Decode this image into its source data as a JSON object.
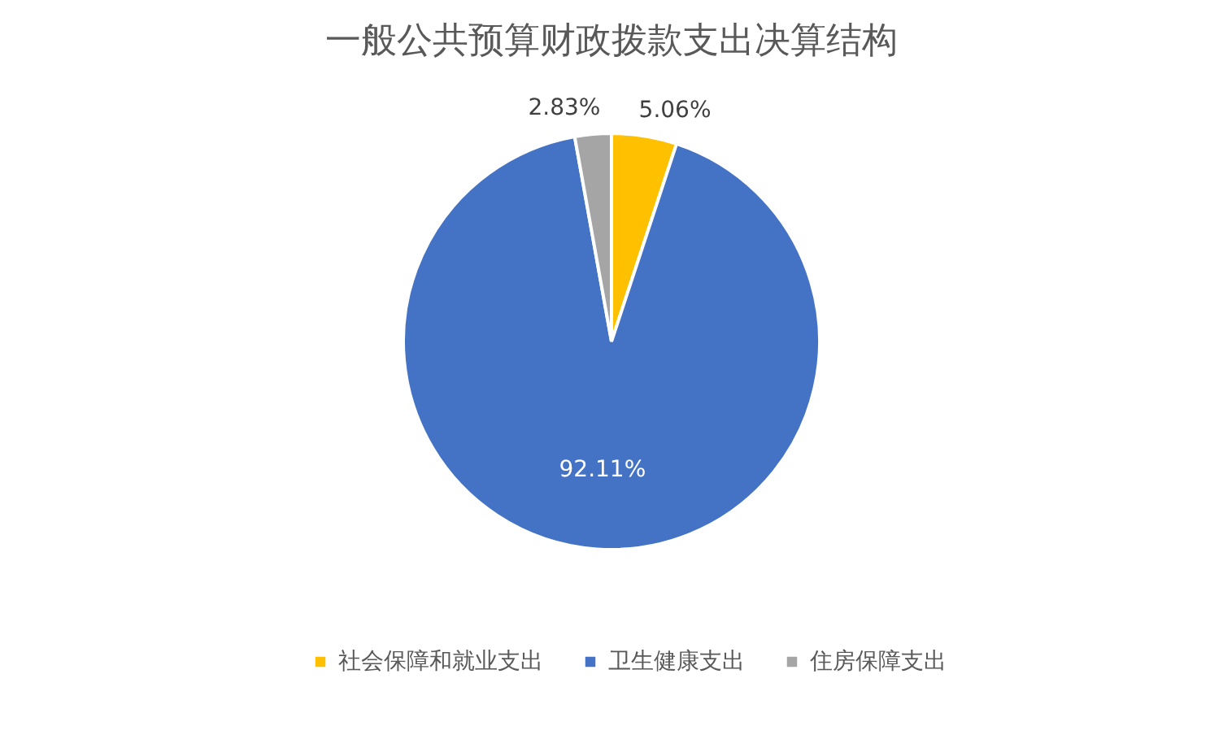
{
  "chart_data": {
    "type": "pie",
    "title": "一般公共预算财政拨款支出决算结构",
    "categories": [
      "社会保障和就业支出",
      "卫生健康支出",
      "住房保障支出"
    ],
    "values": [
      5.06,
      92.11,
      2.83
    ],
    "colors": [
      "#ffc000",
      "#4472c4",
      "#a5a5a5"
    ],
    "value_labels": [
      "5.06%",
      "92.11%",
      "2.83%"
    ],
    "legend": "bottom"
  }
}
